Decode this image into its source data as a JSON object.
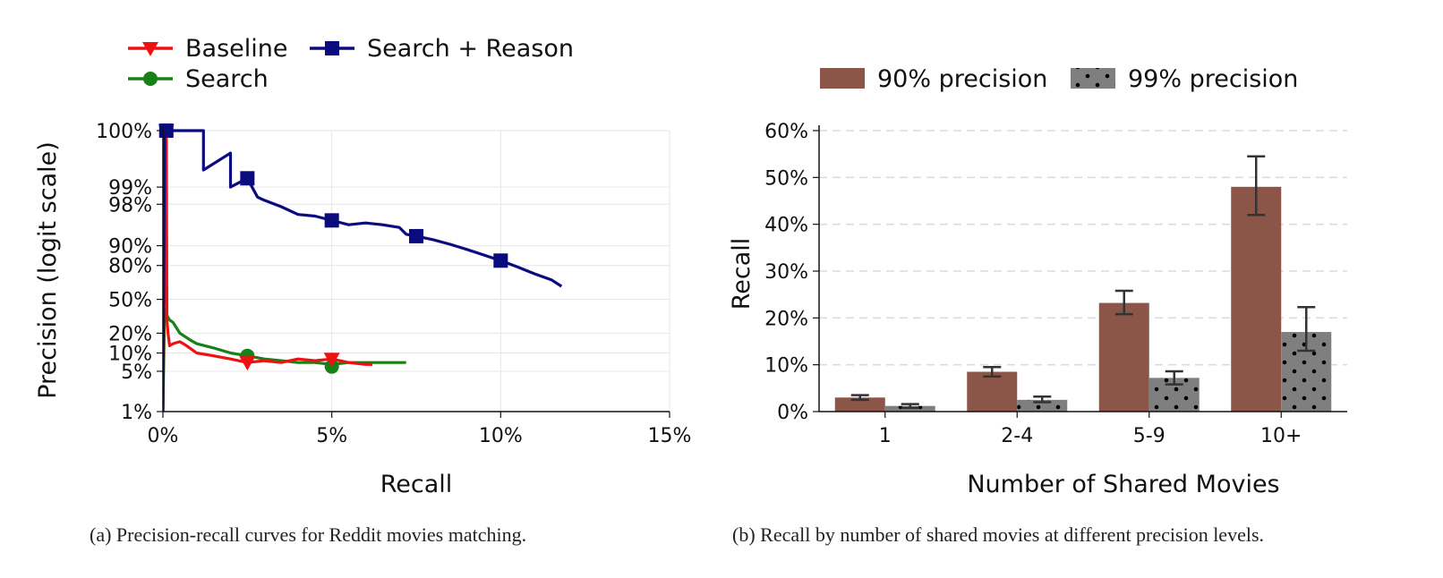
{
  "colors": {
    "baseline": "#ee1111",
    "search": "#178017",
    "search_reason": "#0b0b80",
    "bar90": "#8b5548",
    "bar99": "#7f7f7f",
    "grid": "#e6e6e6",
    "error_bar": "#333333"
  },
  "chart_data": [
    {
      "id": "a",
      "type": "line",
      "xlabel": "Recall",
      "ylabel": "Precision (logit scale)",
      "y_scale": "logit",
      "xlim": [
        0,
        15
      ],
      "ylim": [
        1,
        100
      ],
      "grid": true,
      "legend_position": "top-left",
      "x_tick_labels": [
        "0%",
        "5%",
        "10%",
        "15%"
      ],
      "x_ticks": [
        0,
        5,
        10,
        15
      ],
      "y_tick_labels": [
        "1%",
        "5%",
        "10%",
        "20%",
        "50%",
        "80%",
        "90%",
        "98%",
        "99%",
        "100%"
      ],
      "y_ticks": [
        1,
        5,
        10,
        20,
        50,
        80,
        90,
        98,
        99,
        100
      ],
      "series": [
        {
          "name": "Baseline",
          "marker": "triangle-down",
          "color_key": "baseline",
          "markers": [
            [
              0.1,
              100
            ],
            [
              2.5,
              7
            ],
            [
              5.0,
              8
            ]
          ],
          "points": [
            [
              0,
              1
            ],
            [
              0.03,
              40
            ],
            [
              0.05,
              80
            ],
            [
              0.08,
              70
            ],
            [
              0.1,
              100
            ],
            [
              0.12,
              30
            ],
            [
              0.15,
              20
            ],
            [
              0.2,
              13
            ],
            [
              0.3,
              14
            ],
            [
              0.5,
              15
            ],
            [
              0.7,
              13
            ],
            [
              1.0,
              10
            ],
            [
              1.5,
              9
            ],
            [
              2.0,
              8
            ],
            [
              2.5,
              7
            ],
            [
              3.0,
              7.5
            ],
            [
              3.5,
              7
            ],
            [
              4.0,
              8
            ],
            [
              4.5,
              7.5
            ],
            [
              5.0,
              8
            ],
            [
              5.5,
              7
            ],
            [
              6.0,
              6.5
            ],
            [
              6.2,
              6.5
            ]
          ]
        },
        {
          "name": "Search",
          "marker": "circle",
          "color_key": "search",
          "markers": [
            [
              2.5,
              9
            ],
            [
              5.0,
              6
            ]
          ],
          "points": [
            [
              0,
              1
            ],
            [
              0.05,
              40
            ],
            [
              0.1,
              35
            ],
            [
              0.2,
              30
            ],
            [
              0.3,
              28
            ],
            [
              0.5,
              20
            ],
            [
              0.8,
              16
            ],
            [
              1.0,
              14
            ],
            [
              1.5,
              12
            ],
            [
              2.0,
              10
            ],
            [
              2.5,
              9
            ],
            [
              3.0,
              8
            ],
            [
              3.5,
              7.5
            ],
            [
              4.0,
              7
            ],
            [
              4.5,
              7
            ],
            [
              5.0,
              6.5
            ],
            [
              5.5,
              7
            ],
            [
              6.0,
              7
            ],
            [
              6.5,
              7
            ],
            [
              7.0,
              7
            ],
            [
              7.2,
              7
            ]
          ]
        },
        {
          "name": "Search + Reason",
          "marker": "square",
          "color_key": "search_reason",
          "markers": [
            [
              0.1,
              100
            ],
            [
              2.5,
              99.3
            ],
            [
              5.0,
              96.2
            ],
            [
              7.5,
              93
            ],
            [
              10.0,
              83
            ]
          ],
          "points": [
            [
              0,
              1
            ],
            [
              0.05,
              100
            ],
            [
              1.2,
              100
            ],
            [
              1.2,
              99.5
            ],
            [
              2.0,
              99.75
            ],
            [
              2.0,
              99.0
            ],
            [
              2.5,
              99.3
            ],
            [
              2.8,
              98.5
            ],
            [
              3.0,
              98.3
            ],
            [
              3.5,
              97.8
            ],
            [
              4.0,
              97.0
            ],
            [
              4.5,
              96.8
            ],
            [
              5.0,
              96.2
            ],
            [
              5.5,
              95.5
            ],
            [
              6.0,
              95.8
            ],
            [
              6.5,
              95.5
            ],
            [
              7.0,
              95.0
            ],
            [
              7.2,
              93.5
            ],
            [
              7.5,
              93.0
            ],
            [
              8.0,
              92.0
            ],
            [
              8.5,
              90.5
            ],
            [
              9.0,
              88.5
            ],
            [
              9.5,
              86.0
            ],
            [
              10.0,
              83.0
            ],
            [
              10.5,
              79.0
            ],
            [
              11.0,
              74.0
            ],
            [
              11.5,
              69.0
            ],
            [
              11.8,
              63.0
            ]
          ]
        }
      ]
    },
    {
      "id": "b",
      "type": "bar",
      "xlabel": "Number of Shared Movies",
      "ylabel": "Recall",
      "ylim": [
        0,
        60
      ],
      "grid": true,
      "legend_position": "top",
      "y_tick_labels": [
        "0%",
        "10%",
        "20%",
        "30%",
        "40%",
        "50%",
        "60%"
      ],
      "y_ticks": [
        0,
        10,
        20,
        30,
        40,
        50,
        60
      ],
      "categories": [
        "1",
        "2-4",
        "5-9",
        "10+"
      ],
      "series": [
        {
          "name": "90% precision",
          "pattern": "solid",
          "color_key": "bar90",
          "values": [
            3.0,
            8.5,
            23.2,
            48.0
          ],
          "errors": [
            [
              2.5,
              3.5
            ],
            [
              7.5,
              9.5
            ],
            [
              20.8,
              25.8
            ],
            [
              42.0,
              54.5
            ]
          ]
        },
        {
          "name": "99% precision",
          "pattern": "dots",
          "color_key": "bar99",
          "values": [
            1.2,
            2.5,
            7.2,
            17.0
          ],
          "errors": [
            [
              0.8,
              1.6
            ],
            [
              2.0,
              3.2
            ],
            [
              5.8,
              8.6
            ],
            [
              13.0,
              22.3
            ]
          ]
        }
      ]
    }
  ],
  "captions": {
    "a": "(a) Precision-recall curves for Reddit movies matching.",
    "b": "(b) Recall by number of shared movies at different precision levels."
  }
}
